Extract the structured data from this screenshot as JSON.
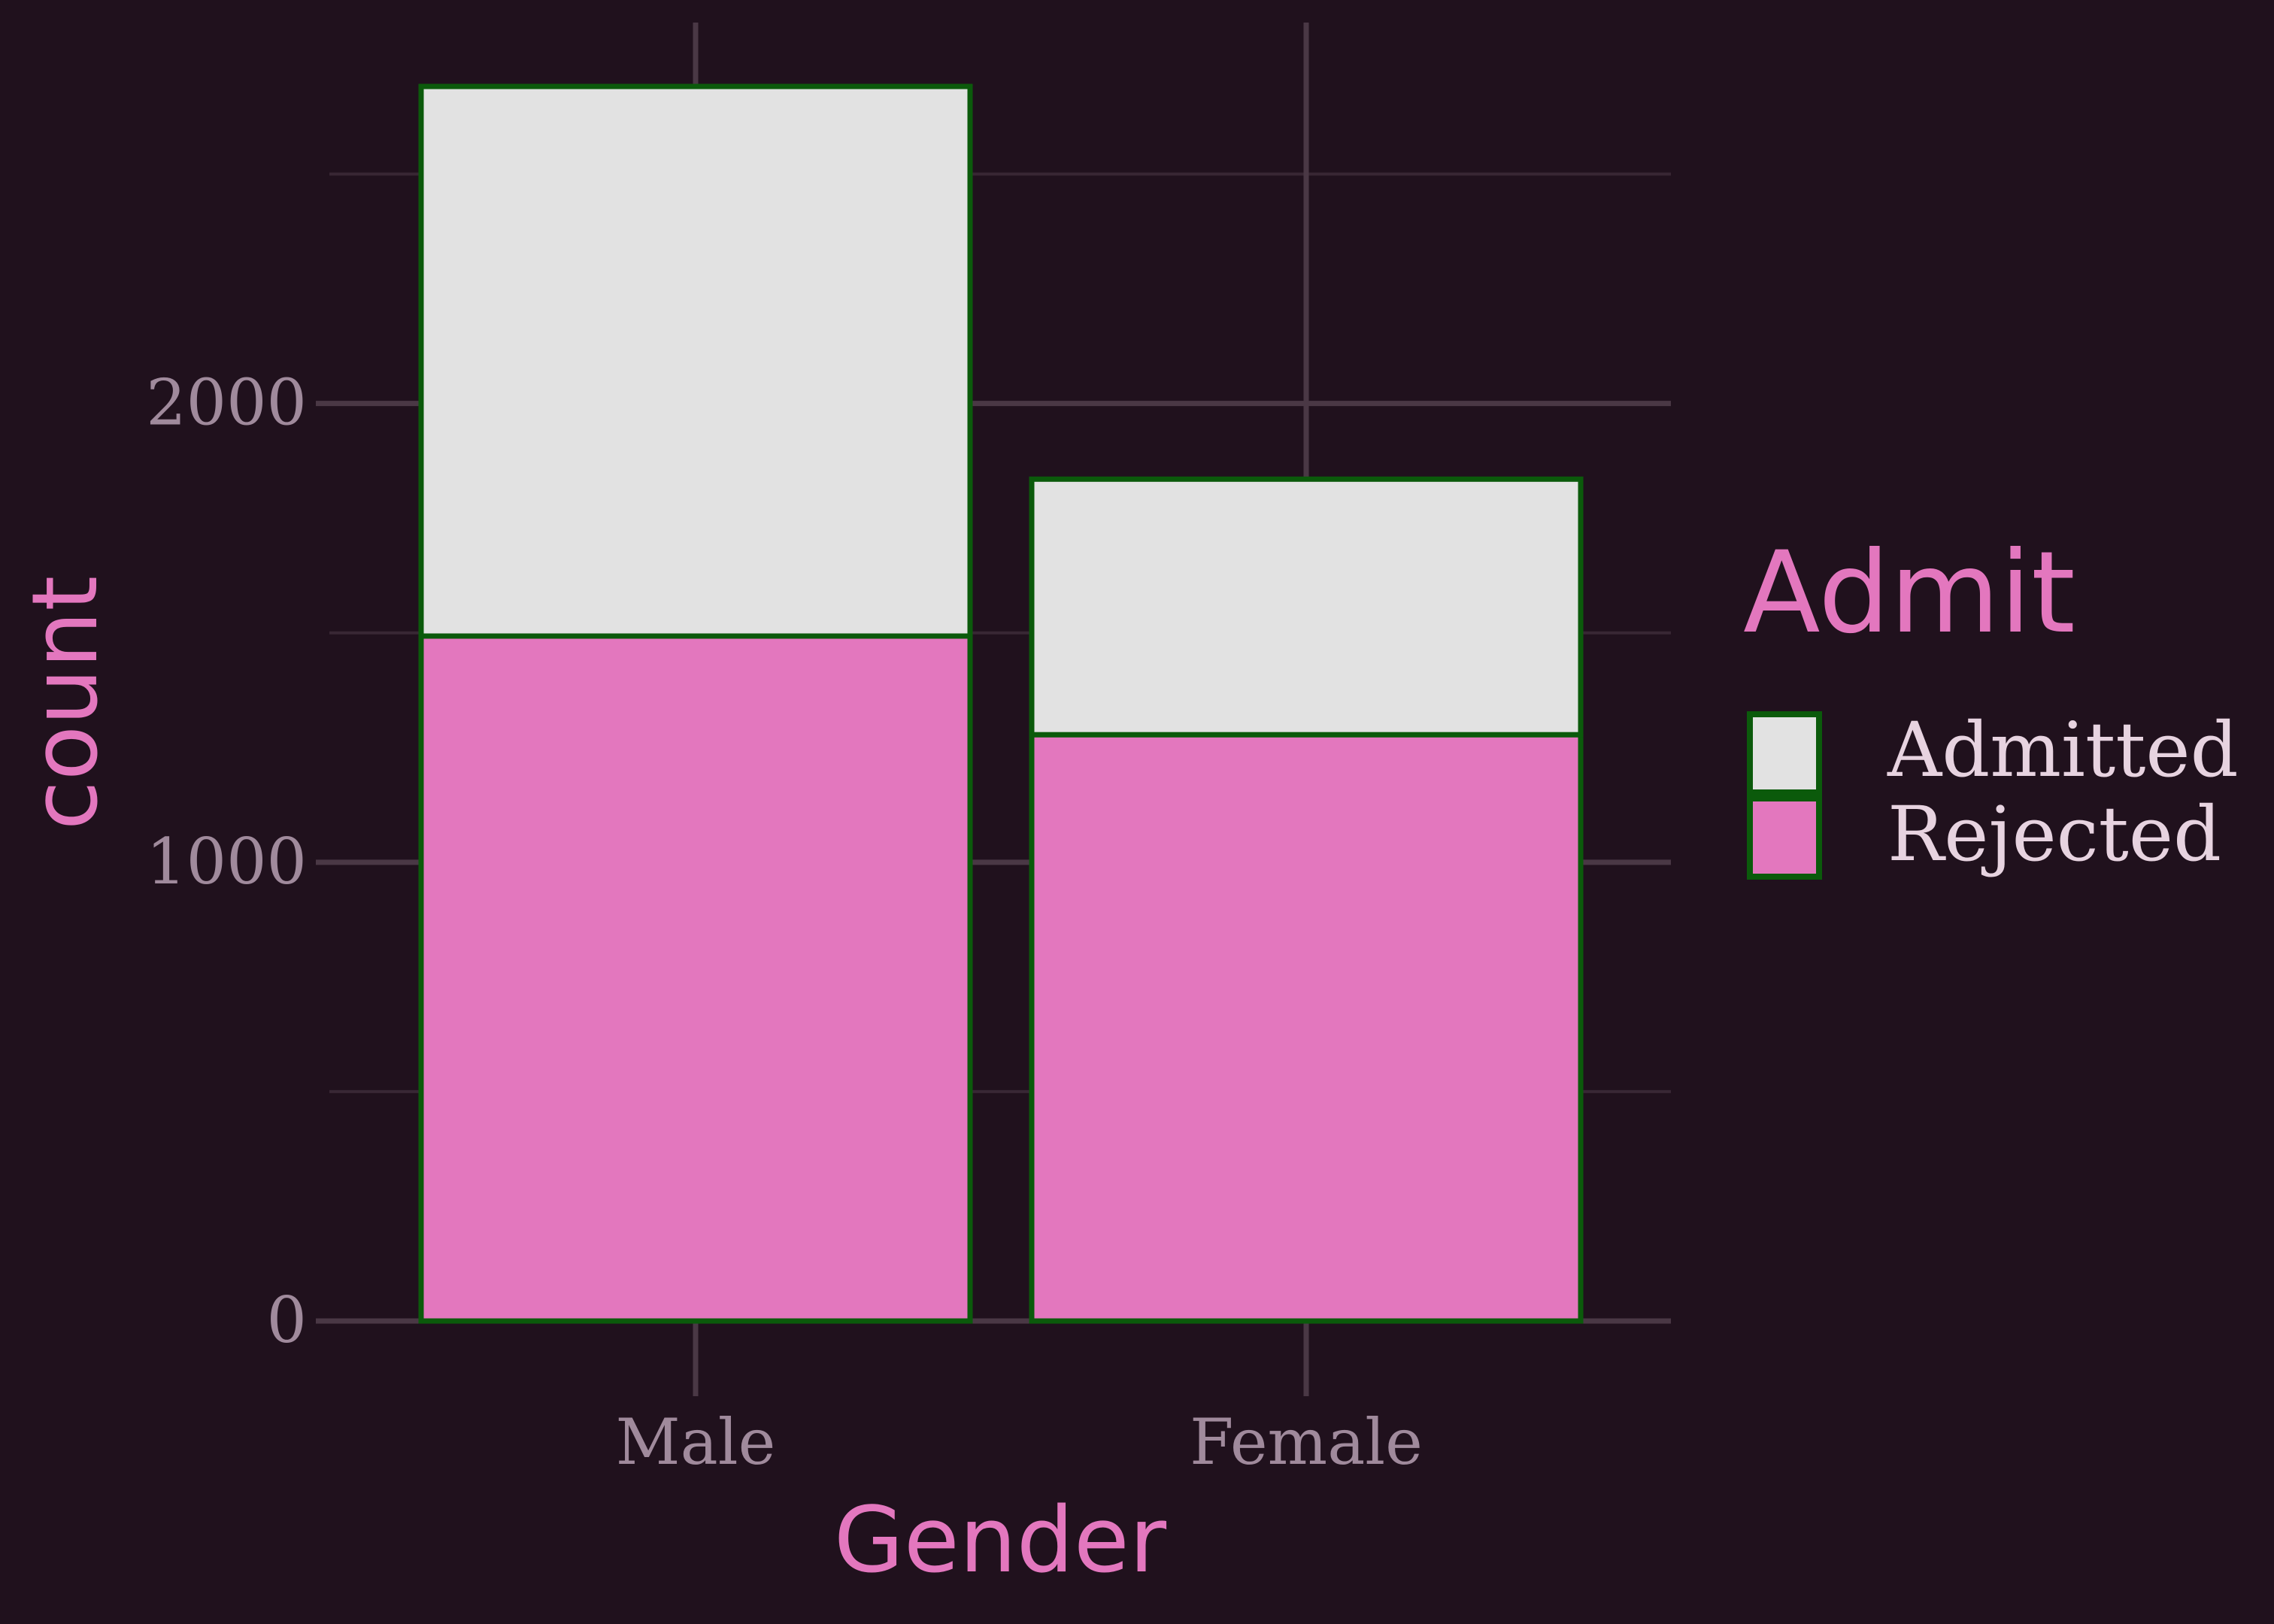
{
  "chart_data": {
    "type": "bar",
    "stacked": true,
    "categories": [
      "Male",
      "Female"
    ],
    "series": [
      {
        "name": "Rejected",
        "values": [
          1493,
          1278
        ],
        "color": "#e377be"
      },
      {
        "name": "Admitted",
        "values": [
          1198,
          557
        ],
        "color": "#e2e2e2"
      }
    ],
    "xlabel": "Gender",
    "ylabel": "count",
    "ylim": [
      0,
      2691
    ],
    "y_ticks": [
      0,
      1000,
      2000
    ],
    "y_tick_labels": [
      "0",
      "1000",
      "2000"
    ],
    "grid": true,
    "legend": {
      "title": "Admit",
      "position": "right",
      "order": [
        "Admitted",
        "Rejected"
      ]
    },
    "colors": {
      "background": "#20111d",
      "grid_major": "#4a3845",
      "grid_minor": "#382734",
      "bar_outline": "#0b5a0b",
      "tick_text": "#a08a9c",
      "title_text": "#e377be",
      "legend_text": "#e7d3e0"
    }
  }
}
